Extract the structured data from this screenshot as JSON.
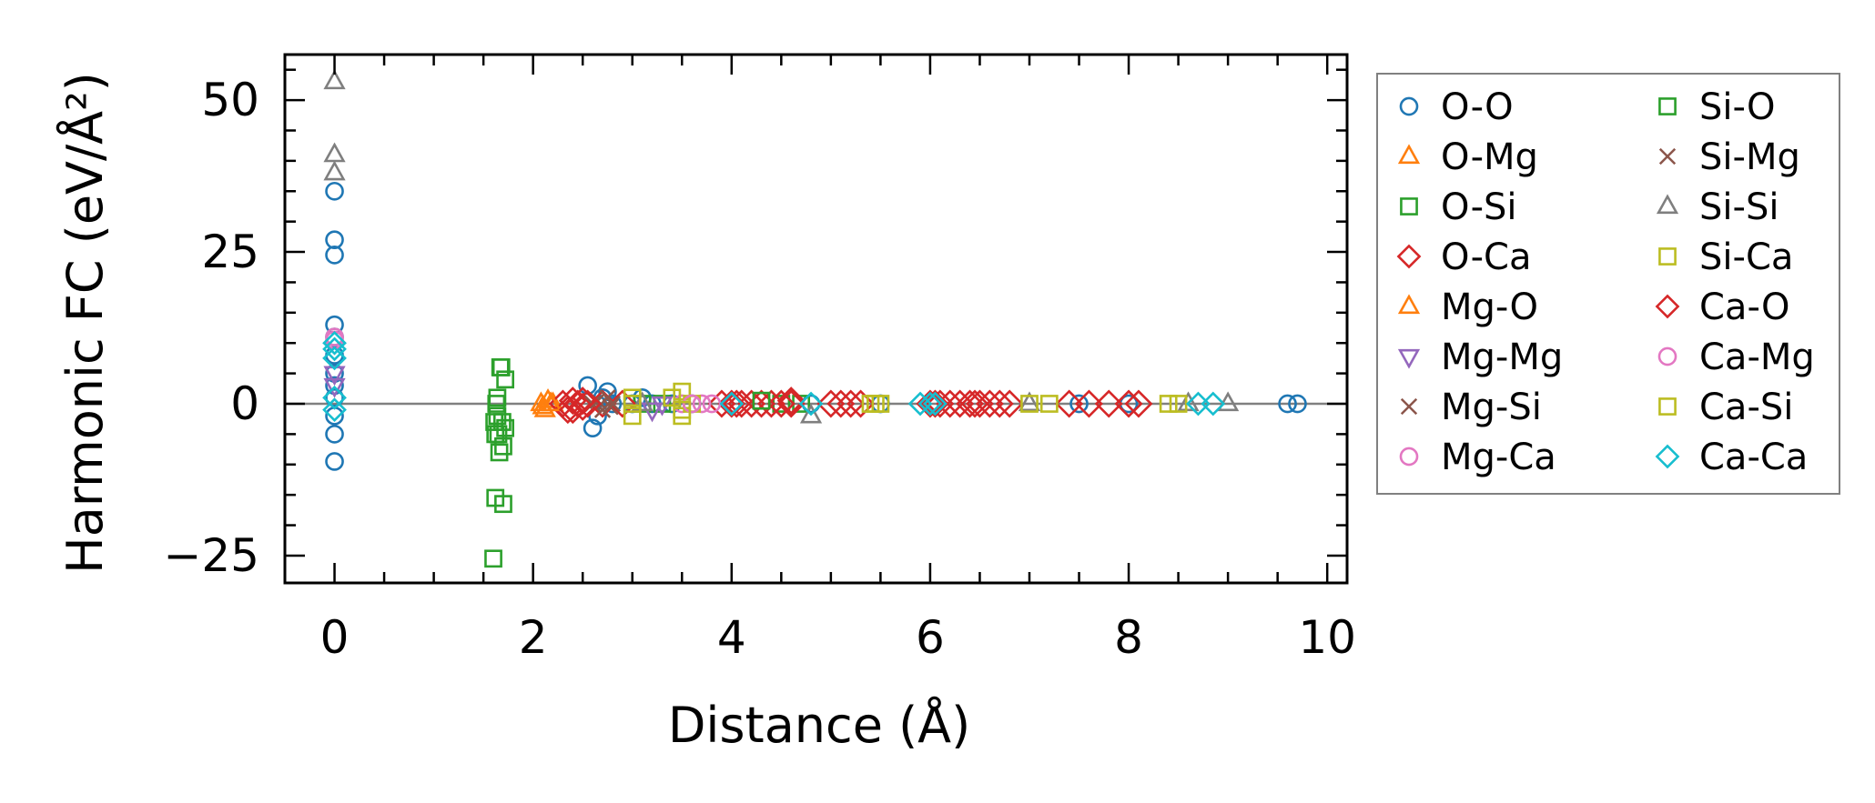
{
  "chart_data": {
    "type": "scatter",
    "xlabel": "Distance (Å)",
    "ylabel": "Harmonic FC (eV/Å²)",
    "xlim": [
      -0.5,
      10.2
    ],
    "ylim": [
      -29.5,
      57.5
    ],
    "xticks": [
      0,
      2,
      4,
      6,
      8,
      10
    ],
    "xtick_labels": [
      "0",
      "2",
      "4",
      "6",
      "8",
      "10"
    ],
    "yticks": [
      -25,
      0,
      25,
      50
    ],
    "ytick_labels": [
      "−25",
      "0",
      "25",
      "50"
    ],
    "zero_line": true,
    "grid": false,
    "legend_placement": "outside right",
    "series": [
      {
        "name": "O-O",
        "marker": "circle",
        "color": "#1f77b4",
        "points": [
          [
            0,
            -9.5
          ],
          [
            0,
            -5
          ],
          [
            0,
            -2
          ],
          [
            0,
            1
          ],
          [
            0,
            3
          ],
          [
            0,
            5
          ],
          [
            0,
            8
          ],
          [
            0,
            11
          ],
          [
            0,
            13
          ],
          [
            0,
            24.5
          ],
          [
            0,
            27
          ],
          [
            0,
            35
          ],
          [
            2.55,
            3
          ],
          [
            2.6,
            -4
          ],
          [
            2.65,
            -2
          ],
          [
            2.7,
            1
          ],
          [
            2.75,
            2
          ],
          [
            2.8,
            0
          ],
          [
            3.0,
            0
          ],
          [
            3.1,
            1
          ],
          [
            3.2,
            0
          ],
          [
            3.4,
            0
          ],
          [
            3.6,
            0
          ],
          [
            4.0,
            0
          ],
          [
            4.8,
            0
          ],
          [
            5.5,
            0
          ],
          [
            6.0,
            0
          ],
          [
            7.5,
            0
          ],
          [
            8.0,
            0
          ],
          [
            9.6,
            0
          ],
          [
            9.7,
            0
          ]
        ]
      },
      {
        "name": "O-Mg",
        "marker": "triangle-up",
        "color": "#ff7f0e",
        "points": [
          [
            2.08,
            0
          ],
          [
            2.12,
            -1
          ],
          [
            2.15,
            0.5
          ],
          [
            2.2,
            0
          ]
        ]
      },
      {
        "name": "O-Si",
        "marker": "square",
        "color": "#2ca02c",
        "points": [
          [
            1.6,
            -25.5
          ],
          [
            1.62,
            -15.5
          ],
          [
            1.62,
            -5
          ],
          [
            1.64,
            -2
          ],
          [
            1.64,
            1
          ],
          [
            1.66,
            -8
          ],
          [
            1.68,
            6
          ],
          [
            1.7,
            -16.5
          ],
          [
            1.7,
            -7
          ],
          [
            1.72,
            4
          ],
          [
            1.72,
            -4
          ],
          [
            3.1,
            0
          ],
          [
            3.3,
            0
          ],
          [
            4.5,
            0
          ],
          [
            4.7,
            0
          ]
        ]
      },
      {
        "name": "O-Ca",
        "marker": "diamond",
        "color": "#d62728",
        "points": [
          [
            2.3,
            0
          ],
          [
            2.35,
            -1
          ],
          [
            2.4,
            0.5
          ],
          [
            2.45,
            0
          ],
          [
            2.5,
            -0.5
          ],
          [
            2.7,
            0
          ],
          [
            2.9,
            0
          ],
          [
            3.9,
            0
          ],
          [
            4.0,
            0
          ],
          [
            4.1,
            0
          ],
          [
            4.2,
            0
          ],
          [
            4.3,
            0
          ],
          [
            4.4,
            0
          ],
          [
            4.5,
            0
          ],
          [
            4.6,
            0
          ],
          [
            5.0,
            0
          ],
          [
            5.1,
            0
          ],
          [
            5.2,
            0
          ],
          [
            5.3,
            0
          ],
          [
            6.0,
            0
          ],
          [
            6.1,
            0
          ],
          [
            6.2,
            0
          ],
          [
            6.3,
            0
          ],
          [
            6.4,
            0
          ],
          [
            6.5,
            0
          ],
          [
            6.6,
            0
          ],
          [
            6.7,
            0
          ],
          [
            6.8,
            0
          ],
          [
            7.4,
            0
          ],
          [
            7.6,
            0
          ],
          [
            7.8,
            0
          ],
          [
            8.0,
            0
          ],
          [
            8.1,
            0
          ]
        ]
      },
      {
        "name": "Mg-O",
        "marker": "triangle-up",
        "color": "#ff7f0e",
        "points": [
          [
            2.1,
            -0.5
          ],
          [
            2.18,
            0
          ]
        ]
      },
      {
        "name": "Mg-Mg",
        "marker": "triangle-down",
        "color": "#9467bd",
        "points": [
          [
            0,
            5
          ],
          [
            0,
            3
          ],
          [
            3.2,
            -1
          ],
          [
            3.3,
            0
          ]
        ]
      },
      {
        "name": "Mg-Si",
        "marker": "x",
        "color": "#8c564b",
        "points": [
          [
            2.6,
            0
          ],
          [
            2.7,
            -1
          ],
          [
            2.75,
            1
          ],
          [
            2.8,
            0
          ]
        ]
      },
      {
        "name": "Mg-Ca",
        "marker": "circle",
        "color": "#e377c2",
        "points": [
          [
            0,
            10.5
          ],
          [
            3.5,
            0
          ],
          [
            3.7,
            0
          ],
          [
            3.8,
            0
          ]
        ]
      },
      {
        "name": "Si-O",
        "marker": "square",
        "color": "#2ca02c",
        "points": [
          [
            1.61,
            -3
          ],
          [
            1.63,
            0
          ],
          [
            1.65,
            -5
          ],
          [
            1.67,
            6
          ],
          [
            1.69,
            -3
          ],
          [
            4.3,
            0.5
          ]
        ]
      },
      {
        "name": "Si-Mg",
        "marker": "x",
        "color": "#8c564b",
        "points": [
          [
            2.65,
            0.5
          ],
          [
            2.78,
            -0.5
          ]
        ]
      },
      {
        "name": "Si-Si",
        "marker": "triangle-up",
        "color": "#7f7f7f",
        "points": [
          [
            0,
            53
          ],
          [
            0,
            41
          ],
          [
            0,
            38
          ],
          [
            3.1,
            0
          ],
          [
            4.8,
            -2
          ],
          [
            7.0,
            0
          ],
          [
            8.6,
            0
          ],
          [
            9.0,
            0
          ]
        ]
      },
      {
        "name": "Si-Ca",
        "marker": "square",
        "color": "#bcbd22",
        "points": [
          [
            3.0,
            1
          ],
          [
            3.0,
            -2
          ],
          [
            3.4,
            1
          ],
          [
            3.5,
            2
          ],
          [
            3.5,
            -2
          ],
          [
            3.6,
            0
          ],
          [
            5.4,
            0
          ],
          [
            5.5,
            0
          ],
          [
            7.0,
            0
          ],
          [
            7.2,
            0
          ],
          [
            8.4,
            0
          ],
          [
            8.5,
            0
          ]
        ]
      },
      {
        "name": "Ca-O",
        "marker": "diamond",
        "color": "#d62728",
        "points": [
          [
            2.4,
            -1
          ],
          [
            2.5,
            0.5
          ],
          [
            2.55,
            0
          ],
          [
            4.05,
            0
          ],
          [
            4.6,
            0.5
          ],
          [
            6.05,
            0
          ],
          [
            6.45,
            0
          ]
        ]
      },
      {
        "name": "Ca-Mg",
        "marker": "circle",
        "color": "#e377c2",
        "points": [
          [
            0,
            11
          ],
          [
            3.6,
            0
          ]
        ]
      },
      {
        "name": "Ca-Si",
        "marker": "square",
        "color": "#bcbd22",
        "points": [
          [
            3.0,
            0
          ],
          [
            3.5,
            -1
          ],
          [
            5.45,
            0
          ]
        ]
      },
      {
        "name": "Ca-Ca",
        "marker": "diamond",
        "color": "#17becf",
        "points": [
          [
            0,
            -1
          ],
          [
            0,
            1
          ],
          [
            0,
            7.5
          ],
          [
            0,
            9
          ],
          [
            0,
            10
          ],
          [
            4.0,
            0
          ],
          [
            4.8,
            0
          ],
          [
            5.9,
            0
          ],
          [
            6.0,
            0
          ],
          [
            6.05,
            0
          ],
          [
            8.7,
            0
          ],
          [
            8.85,
            0
          ]
        ]
      }
    ]
  }
}
